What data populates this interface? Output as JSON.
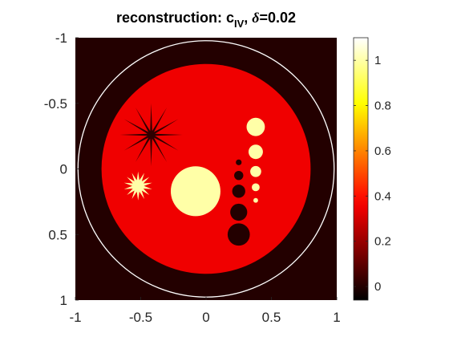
{
  "title": {
    "prefix": "reconstruction: c",
    "subscript": "IV",
    "sep": ", ",
    "delta_symbol": "δ",
    "suffix": "=0.02"
  },
  "chart_data": {
    "type": "heatmap",
    "xlim": [
      -1,
      1
    ],
    "ylim": [
      -1,
      1
    ],
    "y_axis_reversed": true,
    "x_ticks": [
      -1,
      -0.5,
      0,
      0.5,
      1
    ],
    "x_tick_labels": [
      "-1",
      "-0.5",
      "0",
      "0.5",
      "1"
    ],
    "y_ticks": [
      -1,
      -0.5,
      0,
      0.5,
      1
    ],
    "y_tick_labels": [
      "-1",
      "-0.5",
      "0",
      "0.5",
      "1"
    ],
    "colormap": "hot",
    "clim": [
      -0.06,
      1.1
    ],
    "colorbar": {
      "ticks": [
        0,
        0.2,
        0.4,
        0.6,
        0.8,
        1
      ],
      "tick_labels": [
        "0",
        "0.2",
        "0.4",
        "0.6",
        "0.8",
        "1"
      ]
    },
    "boundary_circle": {
      "cx": 0,
      "cy": 0,
      "r": 0.98,
      "color": "#ffffff"
    },
    "background_value": 0.0,
    "phantom": {
      "disk": {
        "cx": 0,
        "cy": 0,
        "r": 0.8,
        "value": 0.35
      },
      "bright_disks": [
        {
          "cx": -0.08,
          "cy": 0.17,
          "r": 0.19,
          "value": 1.0
        },
        {
          "cx": 0.38,
          "cy": -0.32,
          "r": 0.07,
          "value": 1.0
        },
        {
          "cx": 0.38,
          "cy": -0.13,
          "r": 0.055,
          "value": 1.0
        },
        {
          "cx": 0.38,
          "cy": 0.02,
          "r": 0.042,
          "value": 1.0
        },
        {
          "cx": 0.38,
          "cy": 0.14,
          "r": 0.03,
          "value": 1.0
        },
        {
          "cx": 0.38,
          "cy": 0.24,
          "r": 0.018,
          "value": 1.0
        }
      ],
      "dark_disks": [
        {
          "cx": 0.25,
          "cy": 0.5,
          "r": 0.085,
          "value": 0.0
        },
        {
          "cx": 0.25,
          "cy": 0.33,
          "r": 0.065,
          "value": 0.0
        },
        {
          "cx": 0.25,
          "cy": 0.17,
          "r": 0.05,
          "value": 0.0
        },
        {
          "cx": 0.25,
          "cy": 0.05,
          "r": 0.035,
          "value": 0.0
        },
        {
          "cx": 0.25,
          "cy": -0.05,
          "r": 0.022,
          "value": 0.0
        }
      ],
      "stars": [
        {
          "cx": -0.42,
          "cy": -0.26,
          "arms": 12,
          "r_outer": 0.24,
          "r_inner": 0.03,
          "value": 0.02
        },
        {
          "cx": -0.52,
          "cy": 0.13,
          "arms": 14,
          "r_outer": 0.11,
          "r_inner": 0.045,
          "value": 1.0
        }
      ]
    }
  }
}
